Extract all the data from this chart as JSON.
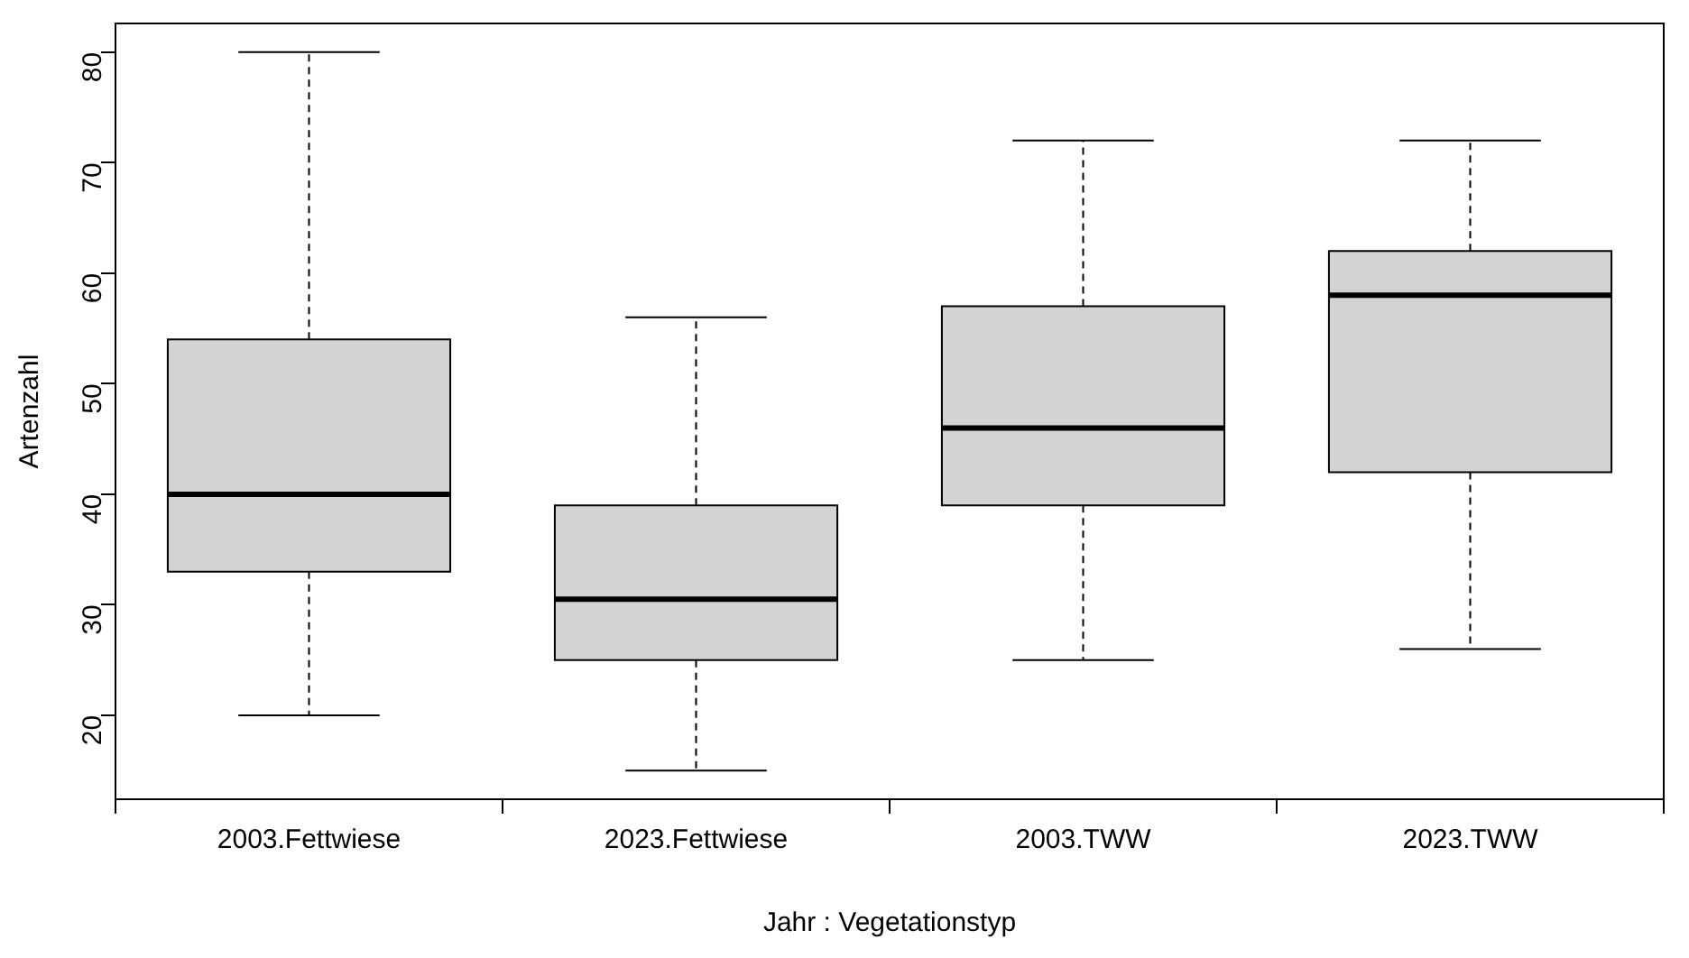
{
  "chart_data": {
    "type": "box",
    "xlabel": "Jahr : Vegetationstyp",
    "ylabel": "Artenzahl",
    "categories": [
      "2003.Fettwiese",
      "2023.Fettwiese",
      "2003.TWW",
      "2023.TWW"
    ],
    "boxes": [
      {
        "low": 20,
        "q1": 33,
        "median": 40,
        "q3": 54,
        "high": 80
      },
      {
        "low": 15,
        "q1": 25,
        "median": 30.5,
        "q3": 39,
        "high": 56
      },
      {
        "low": 25,
        "q1": 39,
        "median": 46,
        "q3": 57,
        "high": 72
      },
      {
        "low": 26,
        "q1": 42,
        "median": 58,
        "q3": 62,
        "high": 72
      }
    ],
    "color": "#d3d3d3",
    "ylim": [
      12.4,
      82.6
    ],
    "yticks": [
      20,
      30,
      40,
      50,
      60,
      70,
      80
    ],
    "grid": false
  }
}
